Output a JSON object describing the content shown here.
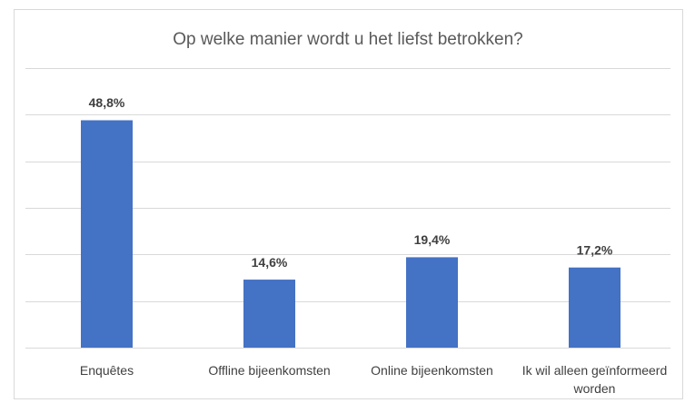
{
  "chart_data": {
    "type": "bar",
    "title": "Op welke manier wordt u het liefst betrokken?",
    "categories": [
      "Enquêtes",
      "Offline bijeenkomsten",
      "Online bijeenkomsten",
      "Ik wil alleen geïnformeerd worden"
    ],
    "values": [
      48.8,
      14.6,
      19.4,
      17.2
    ],
    "value_labels": [
      "48,8%",
      "14,6%",
      "19,4%",
      "17,2%"
    ],
    "color": "#4472c4",
    "ylim": [
      0,
      60
    ],
    "yticks": [
      0,
      10,
      20,
      30,
      40,
      50,
      60
    ],
    "grid": true
  }
}
